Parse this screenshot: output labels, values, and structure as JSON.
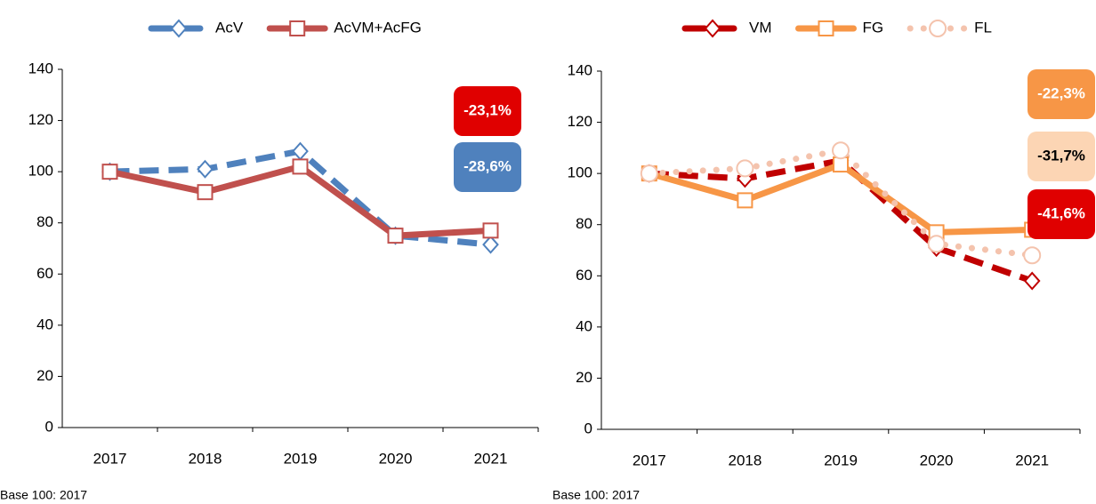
{
  "chart_data": [
    {
      "type": "line",
      "categories": [
        "2017",
        "2018",
        "2019",
        "2020",
        "2021"
      ],
      "series": [
        {
          "name": "AcV",
          "color": "#4f81bd",
          "marker": "diamond",
          "dash": "dashed",
          "values": [
            100,
            101,
            108,
            75,
            71.5
          ]
        },
        {
          "name": "AcVM+AcFG",
          "color": "#c0504d",
          "marker": "square",
          "dash": "solid",
          "values": [
            100,
            92,
            102,
            75,
            77
          ]
        }
      ],
      "ylim": [
        0,
        140
      ],
      "yticks": [
        0,
        20,
        40,
        60,
        80,
        100,
        120,
        140
      ],
      "annotations": [
        {
          "text": "-23,1%",
          "color": "#e00000",
          "text_color": "#ffffff"
        },
        {
          "text": "-28,6%",
          "color": "#4f81bd",
          "text_color": "#ffffff"
        }
      ],
      "note": "Base 100: 2017"
    },
    {
      "type": "line",
      "categories": [
        "2017",
        "2018",
        "2019",
        "2020",
        "2021"
      ],
      "series": [
        {
          "name": "VM",
          "color": "#c00000",
          "marker": "diamond",
          "dash": "dashed",
          "values": [
            100,
            98,
            105,
            71,
            58
          ]
        },
        {
          "name": "FG",
          "color": "#f79646",
          "marker": "square",
          "dash": "solid",
          "values": [
            100,
            89.5,
            103.5,
            77,
            78
          ]
        },
        {
          "name": "FL",
          "color": "#f4c3ad",
          "marker": "circle",
          "dash": "dotted",
          "values": [
            100,
            102,
            109,
            72.5,
            68
          ]
        }
      ],
      "ylim": [
        0,
        140
      ],
      "yticks": [
        0,
        20,
        40,
        60,
        80,
        100,
        120,
        140
      ],
      "annotations": [
        {
          "text": "-22,3%",
          "color": "#f79646",
          "text_color": "#ffffff"
        },
        {
          "text": "-31,7%",
          "color": "#fcd5b4",
          "text_color": "#000000"
        },
        {
          "text": "-41,6%",
          "color": "#e00000",
          "text_color": "#ffffff"
        }
      ],
      "note": "Base 100: 2017"
    }
  ]
}
